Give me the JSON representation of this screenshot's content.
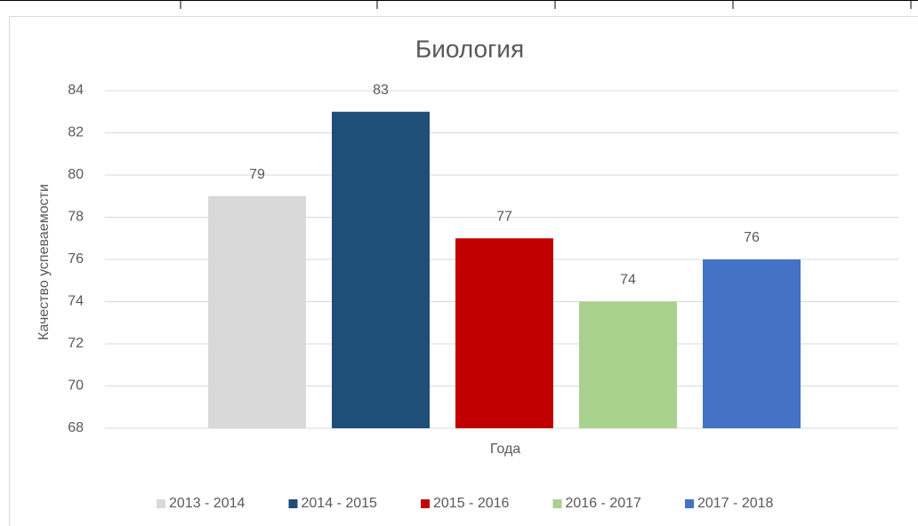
{
  "chart_data": {
    "type": "bar",
    "title": "Биология",
    "x_label": "Года",
    "y_label": "Качество успеваемости",
    "series": [
      {
        "name": "2013 - 2014",
        "color": "#d9d9d9",
        "values": [
          79
        ]
      },
      {
        "name": "2014 - 2015",
        "color": "#1f4e79",
        "values": [
          83
        ]
      },
      {
        "name": "2015 - 2016",
        "color": "#c00000",
        "values": [
          77
        ]
      },
      {
        "name": "2016 - 2017",
        "color": "#a9d18e",
        "values": [
          74
        ]
      },
      {
        "name": "2017 - 2018",
        "color": "#4472c4",
        "values": [
          76
        ]
      }
    ],
    "ylim": [
      68,
      84
    ],
    "yticks": [
      68,
      70,
      72,
      74,
      76,
      78,
      80,
      82,
      84
    ],
    "grid": true,
    "legend": "bottom"
  }
}
